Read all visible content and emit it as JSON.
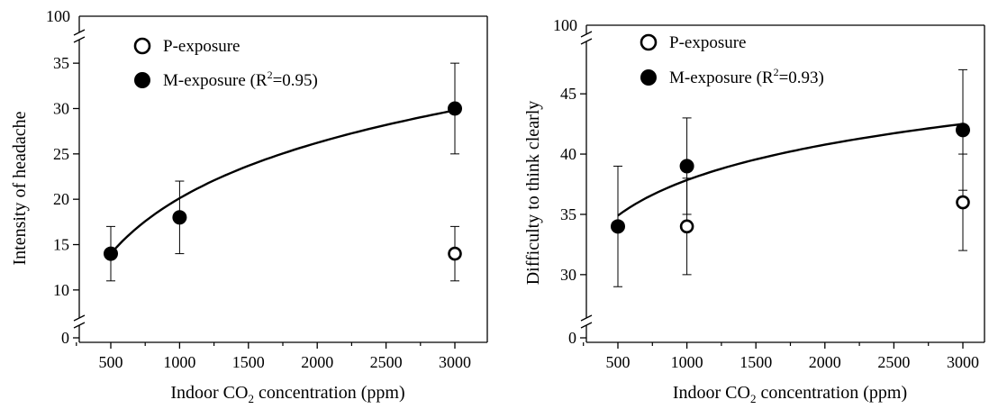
{
  "chart_data": [
    {
      "type": "scatter",
      "title": "",
      "xlabel_parts": [
        "Indoor CO",
        "2",
        " concentration (ppm)"
      ],
      "ylabel": "Intensity of headache",
      "xlim": [
        300,
        3250
      ],
      "ylim": [
        8,
        37
      ],
      "y_break": true,
      "y_axis_zero_label": "0",
      "y_axis_top_label": "100",
      "x_ticks": [
        500,
        1000,
        1500,
        2000,
        2500,
        3000
      ],
      "x_tick_labels": [
        "500",
        "1000",
        "1500",
        "2000",
        "2500",
        "3000"
      ],
      "y_ticks": [
        10,
        15,
        20,
        25,
        30,
        35
      ],
      "y_tick_labels": [
        "10",
        "15",
        "20",
        "25",
        "30",
        "35"
      ],
      "grid": false,
      "legend_position": "top-left",
      "series": [
        {
          "name": "P-exposure",
          "marker": "open-circle",
          "x": [
            3000
          ],
          "y": [
            14
          ],
          "err_low": [
            11
          ],
          "err_high": [
            17
          ]
        },
        {
          "name": "M-exposure",
          "legend_suffix": "(R",
          "legend_sup": "2",
          "legend_tail": "=0.95)",
          "marker": "filled-circle",
          "x": [
            500,
            1000,
            3000
          ],
          "y": [
            14,
            18,
            30
          ],
          "err_low": [
            11,
            14,
            25
          ],
          "err_high": [
            17,
            22,
            35
          ],
          "fit": {
            "type": "logarithmic",
            "x_from": 500,
            "x_to": 3000,
            "y_from": 14,
            "y_to": 29.8
          }
        }
      ]
    },
    {
      "type": "scatter",
      "title": "",
      "xlabel_parts": [
        "Indoor CO",
        "2",
        " concentration (ppm)"
      ],
      "ylabel": "Difficulty to think clearly",
      "xlim": [
        300,
        3250
      ],
      "ylim": [
        27,
        48
      ],
      "y_break": true,
      "y_axis_zero_label": "0",
      "y_axis_top_label": "100",
      "x_ticks": [
        500,
        1000,
        1500,
        2000,
        2500,
        3000
      ],
      "x_tick_labels": [
        "500",
        "1000",
        "1500",
        "2000",
        "2500",
        "3000"
      ],
      "y_ticks": [
        30,
        35,
        40,
        45
      ],
      "y_tick_labels": [
        "30",
        "35",
        "40",
        "45"
      ],
      "grid": false,
      "legend_position": "top-left",
      "series": [
        {
          "name": "P-exposure",
          "marker": "open-circle",
          "x": [
            1000,
            3000
          ],
          "y": [
            34,
            36
          ],
          "err_low": [
            30,
            32
          ],
          "err_high": [
            38,
            40
          ]
        },
        {
          "name": "M-exposure",
          "legend_suffix": "(R",
          "legend_sup": "2",
          "legend_tail": "=0.93)",
          "marker": "filled-circle",
          "x": [
            500,
            1000,
            3000
          ],
          "y": [
            34,
            39,
            42
          ],
          "err_low": [
            29,
            35,
            37
          ],
          "err_high": [
            39,
            43,
            47
          ],
          "fit": {
            "type": "logarithmic",
            "x_from": 500,
            "x_to": 3000,
            "y_from": 34.9,
            "y_to": 42.5
          }
        }
      ]
    }
  ]
}
